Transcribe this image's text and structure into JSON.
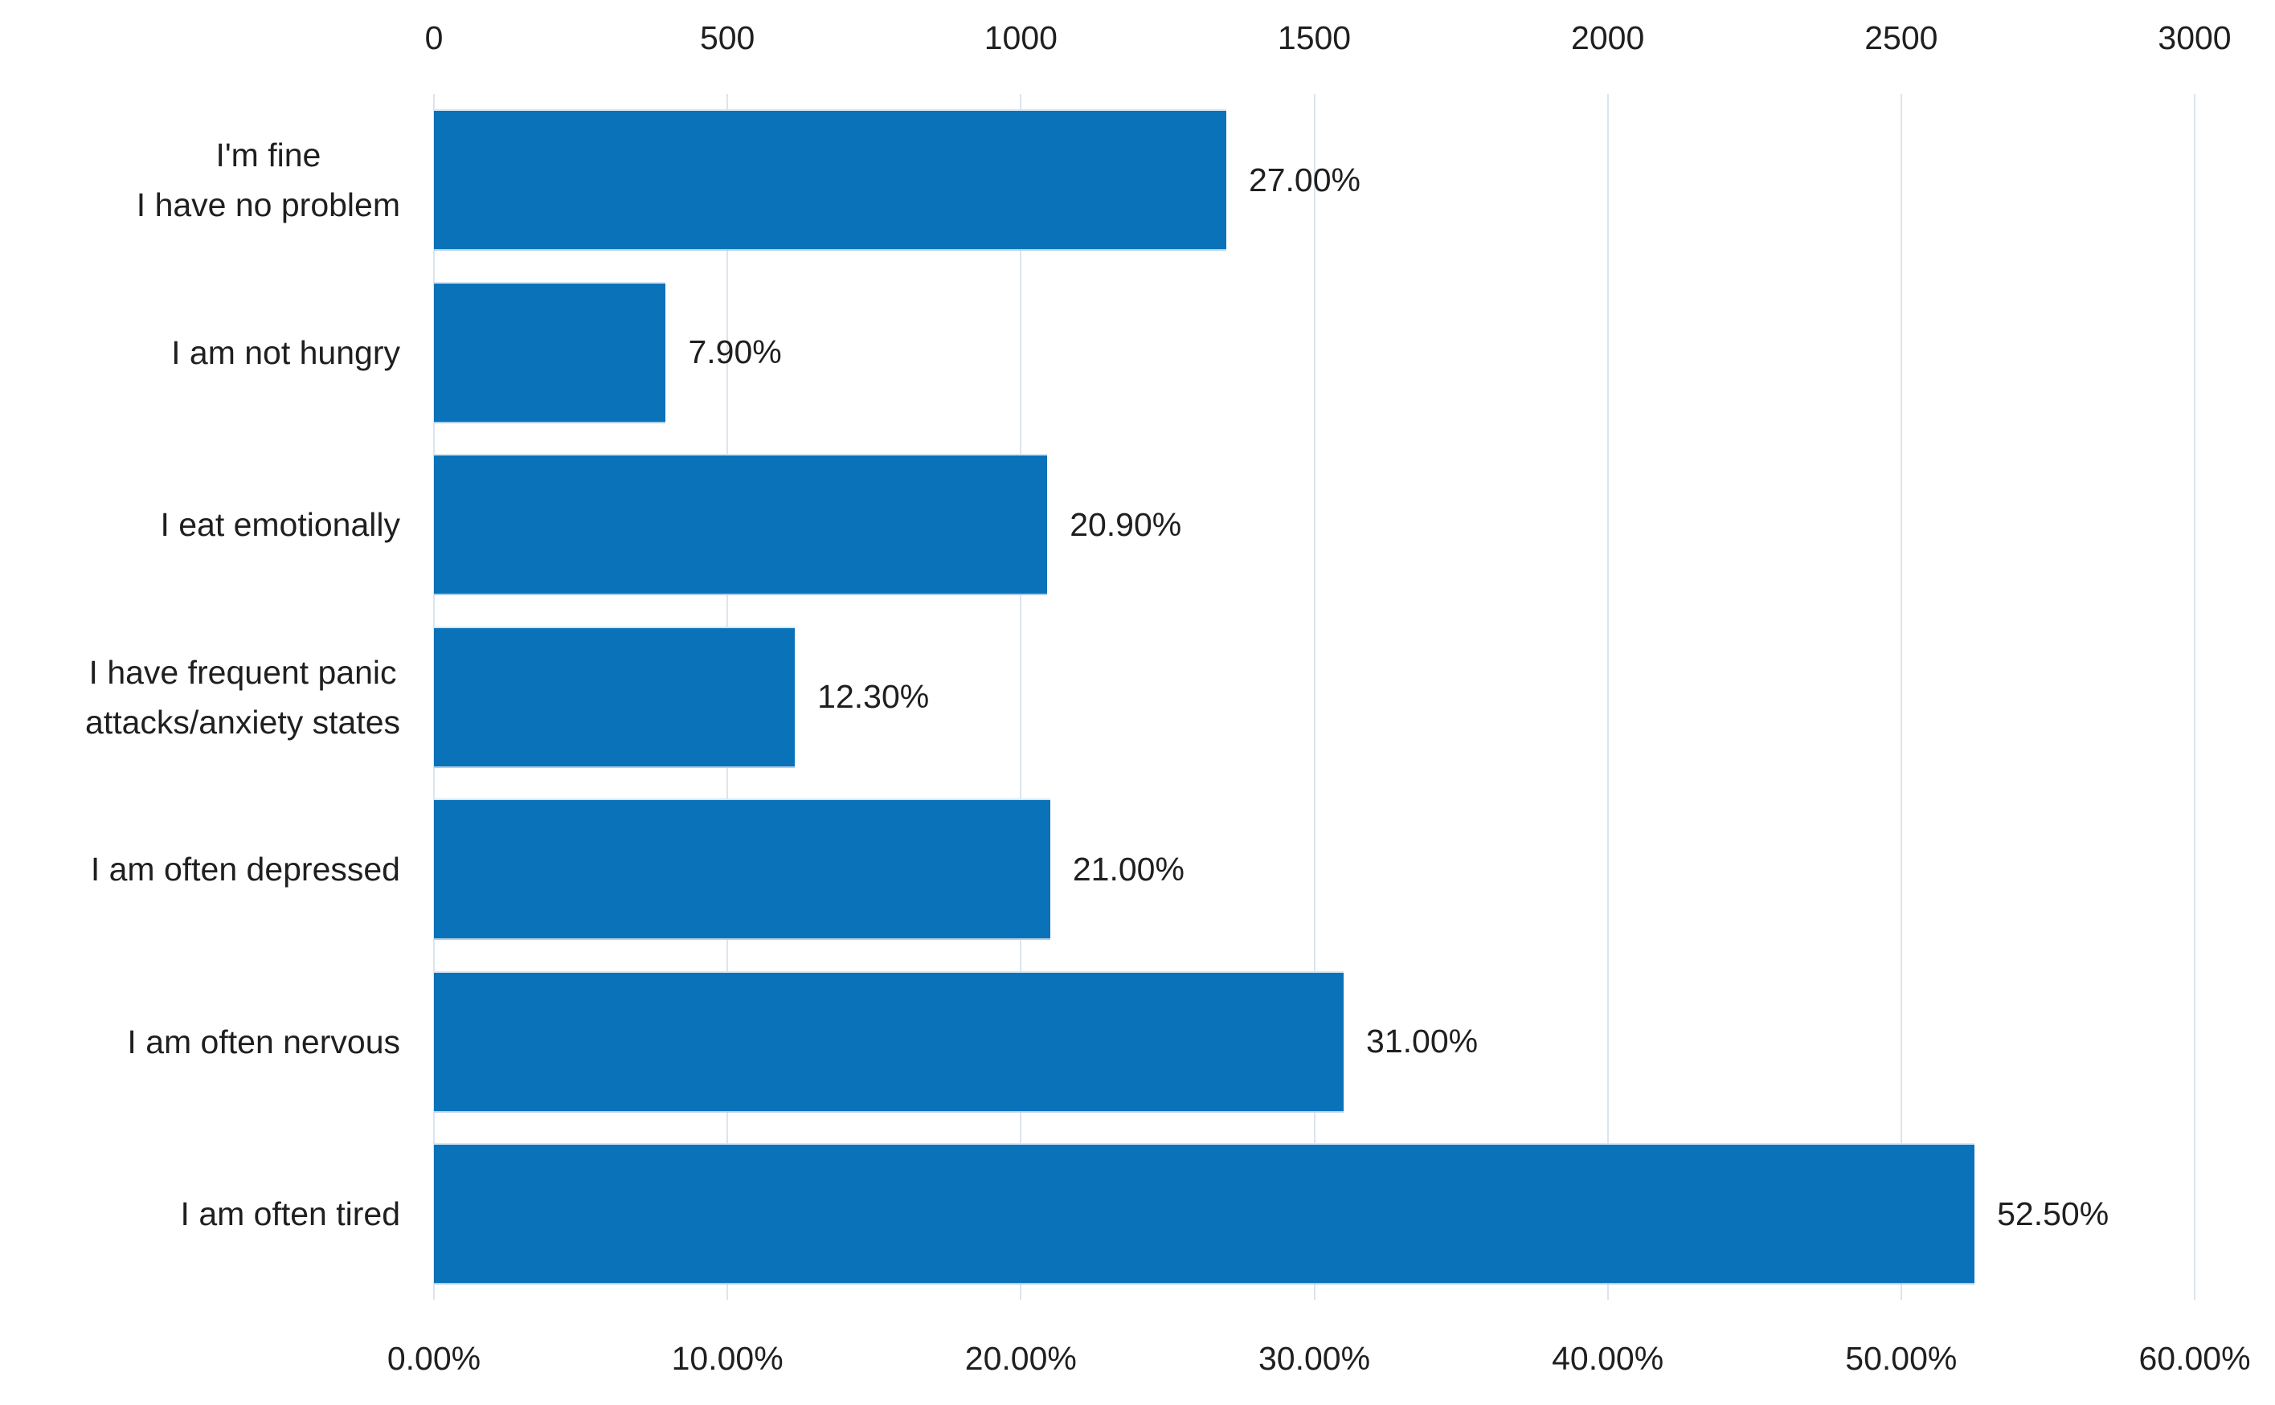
{
  "chart_data": {
    "type": "bar",
    "orientation": "horizontal",
    "title": "",
    "legend": false,
    "grid": true,
    "bar_color": "#0a72b8",
    "gridline_color": "#dbe5f0",
    "text_color": "#1f1f1f",
    "categories": [
      [
        "I'm fine",
        "I have no problem"
      ],
      [
        "I am not hungry"
      ],
      [
        "I eat emotionally"
      ],
      [
        "I have frequent panic",
        "attacks/anxiety states"
      ],
      [
        "I am often depressed"
      ],
      [
        "I am often nervous"
      ],
      [
        "I am often tired"
      ]
    ],
    "values": [
      27.0,
      7.9,
      20.9,
      12.3,
      21.0,
      31.0,
      52.5
    ],
    "value_labels": [
      "27.00%",
      "7.90%",
      "20.90%",
      "12.30%",
      "21.00%",
      "31.00%",
      "52.50%"
    ],
    "top_axis": {
      "ticks": [
        "0",
        "500",
        "1000",
        "1500",
        "2000",
        "2500",
        "3000"
      ],
      "range": [
        0,
        3000
      ]
    },
    "bottom_axis": {
      "ticks": [
        "0.00%",
        "10.00%",
        "20.00%",
        "30.00%",
        "40.00%",
        "50.00%",
        "60.00%"
      ],
      "range": [
        0,
        60
      ]
    }
  }
}
